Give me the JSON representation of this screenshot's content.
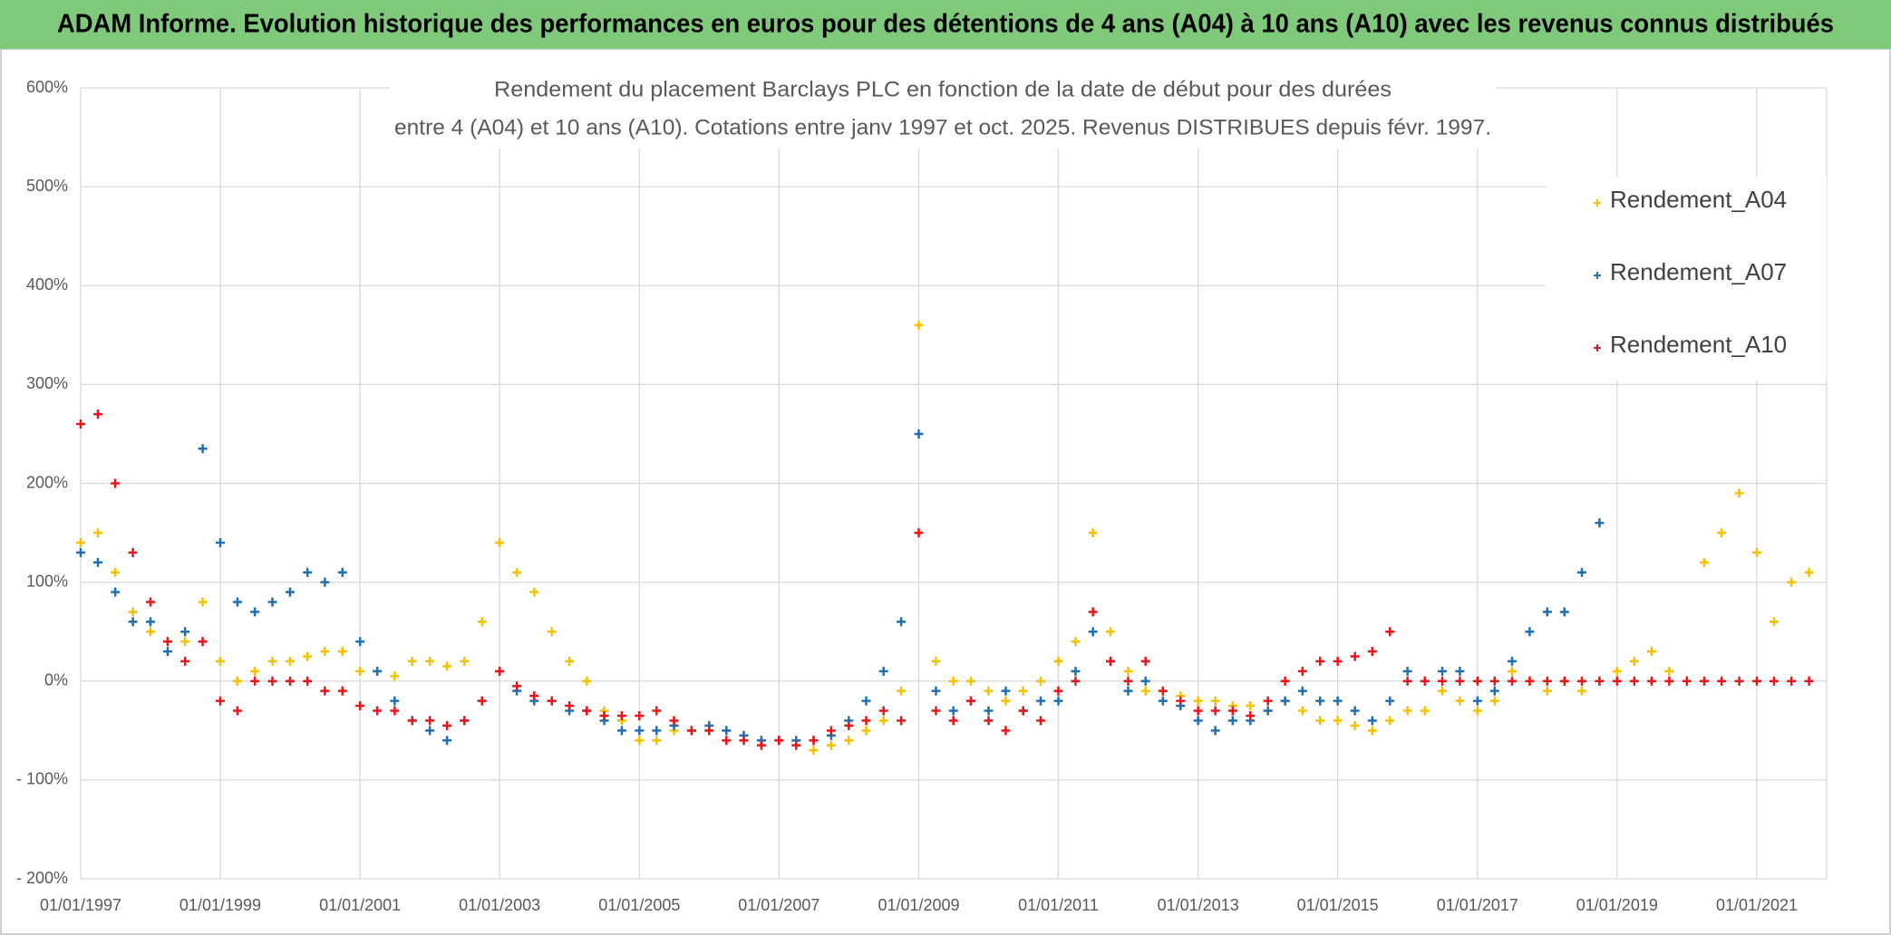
{
  "chart_data": {
    "type": "scatter",
    "title": "ADAM Informe. Evolution historique des performances en euros pour des détentions de 4 ans (A04) à 10 ans (A10) avec les revenus connus distribués",
    "subtitle": [
      "Rendement du placement Barclays PLC en fonction de la date de début pour des durées",
      "entre 4 (A04) et 10 ans (A10). Cotations entre janv 1997 et oct. 2025. Revenus DISTRIBUES depuis févr. 1997."
    ],
    "x": [
      "1997-01-01",
      "1997-04-01",
      "1997-07-01",
      "1997-10-01",
      "1998-01-01",
      "1998-04-01",
      "1998-07-01",
      "1998-10-01",
      "1999-01-01",
      "1999-04-01",
      "1999-07-01",
      "1999-10-01",
      "2000-01-01",
      "2000-04-01",
      "2000-07-01",
      "2000-10-01",
      "2001-01-01",
      "2001-04-01",
      "2001-07-01",
      "2001-10-01",
      "2002-01-01",
      "2002-04-01",
      "2002-07-01",
      "2002-10-01",
      "2003-01-01",
      "2003-04-01",
      "2003-07-01",
      "2003-10-01",
      "2004-01-01",
      "2004-04-01",
      "2004-07-01",
      "2004-10-01",
      "2005-01-01",
      "2005-04-01",
      "2005-07-01",
      "2005-10-01",
      "2006-01-01",
      "2006-04-01",
      "2006-07-01",
      "2006-10-01",
      "2007-01-01",
      "2007-04-01",
      "2007-07-01",
      "2007-10-01",
      "2008-01-01",
      "2008-04-01",
      "2008-07-01",
      "2008-10-01",
      "2009-01-01",
      "2009-04-01",
      "2009-07-01",
      "2009-10-01",
      "2010-01-01",
      "2010-04-01",
      "2010-07-01",
      "2010-10-01",
      "2011-01-01",
      "2011-04-01",
      "2011-07-01",
      "2011-10-01",
      "2012-01-01",
      "2012-04-01",
      "2012-07-01",
      "2012-10-01",
      "2013-01-01",
      "2013-04-01",
      "2013-07-01",
      "2013-10-01",
      "2014-01-01",
      "2014-04-01",
      "2014-07-01",
      "2014-10-01",
      "2015-01-01",
      "2015-04-01",
      "2015-07-01",
      "2015-10-01",
      "2016-01-01",
      "2016-04-01",
      "2016-07-01",
      "2016-10-01",
      "2017-01-01",
      "2017-04-01",
      "2017-07-01",
      "2017-10-01",
      "2018-01-01",
      "2018-04-01",
      "2018-07-01",
      "2018-10-01",
      "2019-01-01",
      "2019-04-01",
      "2019-07-01",
      "2019-10-01",
      "2020-01-01",
      "2020-04-01",
      "2020-07-01",
      "2020-10-01",
      "2021-01-01",
      "2021-04-01",
      "2021-07-01",
      "2021-10-01"
    ],
    "series": [
      {
        "name": "Rendement_A04",
        "color": "#f5c000",
        "values": [
          140,
          150,
          110,
          70,
          50,
          40,
          40,
          80,
          20,
          0,
          10,
          20,
          20,
          25,
          30,
          30,
          10,
          10,
          5,
          20,
          20,
          15,
          20,
          60,
          140,
          110,
          90,
          50,
          20,
          0,
          -30,
          -40,
          -60,
          -60,
          -50,
          -50,
          -50,
          -50,
          -55,
          -60,
          -60,
          -65,
          -70,
          -65,
          -60,
          -50,
          -40,
          -10,
          360,
          20,
          0,
          0,
          -10,
          -20,
          -10,
          0,
          20,
          40,
          150,
          50,
          10,
          -10,
          -10,
          -15,
          -20,
          -20,
          -25,
          -25,
          -30,
          -20,
          -30,
          -40,
          -40,
          -45,
          -50,
          -40,
          -30,
          -30,
          -10,
          -20,
          -30,
          -20,
          10,
          0,
          -10,
          0,
          -10,
          0,
          10,
          20,
          30,
          10,
          0,
          120,
          150,
          190,
          130,
          60,
          100,
          110
        ]
      },
      {
        "name": "Rendement_A07",
        "color": "#1f6fb4",
        "values": [
          130,
          120,
          90,
          60,
          60,
          30,
          50,
          235,
          140,
          80,
          70,
          80,
          90,
          110,
          100,
          110,
          40,
          10,
          -20,
          -40,
          -50,
          -60,
          -40,
          -20,
          10,
          -10,
          -20,
          -20,
          -30,
          -30,
          -40,
          -50,
          -50,
          -50,
          -45,
          -50,
          -45,
          -50,
          -55,
          -60,
          -60,
          -60,
          -60,
          -55,
          -40,
          -20,
          10,
          60,
          250,
          -10,
          -30,
          -20,
          -30,
          -10,
          -30,
          -20,
          -20,
          10,
          50,
          20,
          -10,
          0,
          -20,
          -25,
          -40,
          -50,
          -40,
          -40,
          -30,
          -20,
          -10,
          -20,
          -20,
          -30,
          -40,
          -20,
          10,
          0,
          10,
          10,
          -20,
          -10,
          20,
          50,
          70,
          70,
          110,
          160,
          null,
          null,
          null,
          null,
          null,
          null,
          null,
          null,
          null,
          null,
          null,
          null
        ]
      },
      {
        "name": "Rendement_A10",
        "color": "#e8151b",
        "values": [
          260,
          270,
          200,
          130,
          80,
          40,
          20,
          40,
          -20,
          -30,
          0,
          0,
          0,
          0,
          -10,
          -10,
          -25,
          -30,
          -30,
          -40,
          -40,
          -45,
          -40,
          -20,
          10,
          -5,
          -15,
          -20,
          -25,
          -30,
          -35,
          -35,
          -35,
          -30,
          -40,
          -50,
          -50,
          -60,
          -60,
          -65,
          -60,
          -65,
          -60,
          -50,
          -45,
          -40,
          -30,
          -40,
          150,
          -30,
          -40,
          -20,
          -40,
          -50,
          -30,
          -40,
          -10,
          0,
          70,
          20,
          0,
          20,
          -10,
          -20,
          -30,
          -30,
          -30,
          -35,
          -20,
          0,
          10,
          20,
          20,
          25,
          30,
          50,
          0,
          0,
          0,
          0,
          0,
          0,
          0,
          0,
          0,
          0,
          0,
          0,
          0,
          0,
          0,
          0,
          0,
          0,
          0,
          0,
          0,
          0,
          0,
          0
        ]
      }
    ],
    "xlim": [
      "1997-01-01",
      "2022-01-01"
    ],
    "xticks": [
      {
        "value": "1997-01-01",
        "label": "01/01/1997"
      },
      {
        "value": "1999-01-01",
        "label": "01/01/1999"
      },
      {
        "value": "2001-01-01",
        "label": "01/01/2001"
      },
      {
        "value": "2003-01-01",
        "label": "01/01/2003"
      },
      {
        "value": "2005-01-01",
        "label": "01/01/2005"
      },
      {
        "value": "2007-01-01",
        "label": "01/01/2007"
      },
      {
        "value": "2009-01-01",
        "label": "01/01/2009"
      },
      {
        "value": "2011-01-01",
        "label": "01/01/2011"
      },
      {
        "value": "2013-01-01",
        "label": "01/01/2013"
      },
      {
        "value": "2015-01-01",
        "label": "01/01/2015"
      },
      {
        "value": "2017-01-01",
        "label": "01/01/2017"
      },
      {
        "value": "2019-01-01",
        "label": "01/01/2019"
      },
      {
        "value": "2021-01-01",
        "label": "01/01/2021"
      }
    ],
    "ylim": [
      -200,
      600
    ],
    "yticks": [
      {
        "value": 600,
        "label": "600%"
      },
      {
        "value": 500,
        "label": "500%"
      },
      {
        "value": 400,
        "label": "400%"
      },
      {
        "value": 300,
        "label": "300%"
      },
      {
        "value": 200,
        "label": "200%"
      },
      {
        "value": 100,
        "label": "100%"
      },
      {
        "value": 0,
        "label": "0%"
      },
      {
        "value": -100,
        "label": "- 100%"
      },
      {
        "value": -200,
        "label": "- 200%"
      }
    ],
    "grid": true,
    "legend": "upper right"
  }
}
